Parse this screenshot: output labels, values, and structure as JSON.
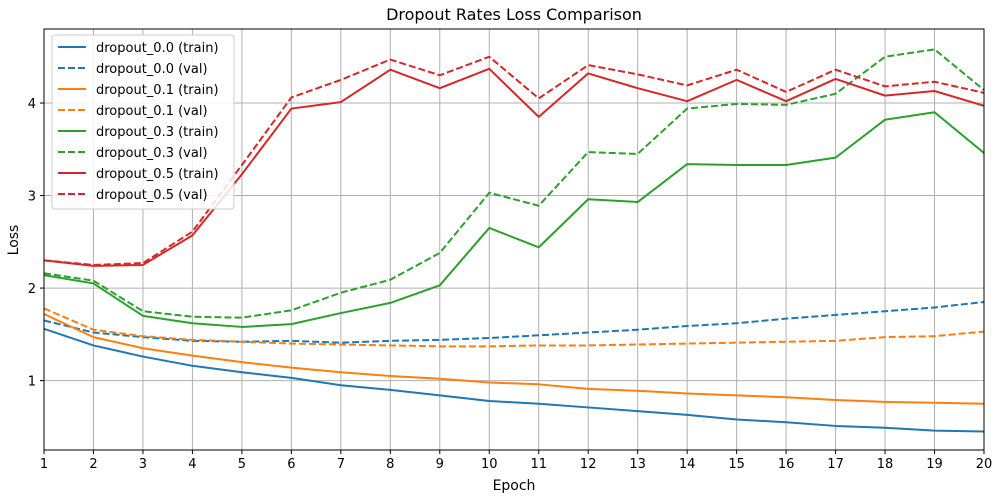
{
  "chart_data": {
    "type": "line",
    "title": "Dropout Rates Loss Comparison",
    "xlabel": "Epoch",
    "ylabel": "Loss",
    "x": [
      1,
      2,
      3,
      4,
      5,
      6,
      7,
      8,
      9,
      10,
      11,
      12,
      13,
      14,
      15,
      16,
      17,
      18,
      19,
      20
    ],
    "xlim": [
      1,
      20
    ],
    "ylim": [
      0.25,
      4.8
    ],
    "xticks": [
      1,
      2,
      3,
      4,
      5,
      6,
      7,
      8,
      9,
      10,
      11,
      12,
      13,
      14,
      15,
      16,
      17,
      18,
      19,
      20
    ],
    "yticks": [
      1,
      2,
      3,
      4
    ],
    "grid": true,
    "legend_position": "upper-left",
    "series": [
      {
        "name": "dropout_0.0 (train)",
        "color": "#1f77b4",
        "style": "solid",
        "values": [
          1.56,
          1.38,
          1.26,
          1.16,
          1.09,
          1.03,
          0.95,
          0.9,
          0.84,
          0.78,
          0.75,
          0.71,
          0.67,
          0.63,
          0.58,
          0.55,
          0.51,
          0.49,
          0.46,
          0.45
        ]
      },
      {
        "name": "dropout_0.0 (val)",
        "color": "#1f77b4",
        "style": "dashed",
        "values": [
          1.65,
          1.52,
          1.47,
          1.43,
          1.42,
          1.43,
          1.41,
          1.43,
          1.44,
          1.46,
          1.49,
          1.52,
          1.55,
          1.59,
          1.62,
          1.67,
          1.71,
          1.75,
          1.79,
          1.85
        ]
      },
      {
        "name": "dropout_0.1 (train)",
        "color": "#ff7f0e",
        "style": "solid",
        "values": [
          1.72,
          1.47,
          1.35,
          1.27,
          1.2,
          1.14,
          1.09,
          1.05,
          1.02,
          0.98,
          0.96,
          0.91,
          0.89,
          0.86,
          0.84,
          0.82,
          0.79,
          0.77,
          0.76,
          0.75
        ]
      },
      {
        "name": "dropout_0.1 (val)",
        "color": "#ff7f0e",
        "style": "dashed",
        "values": [
          1.78,
          1.55,
          1.48,
          1.44,
          1.42,
          1.4,
          1.39,
          1.38,
          1.37,
          1.37,
          1.38,
          1.38,
          1.39,
          1.4,
          1.41,
          1.42,
          1.43,
          1.47,
          1.48,
          1.53
        ]
      },
      {
        "name": "dropout_0.3 (train)",
        "color": "#2ca02c",
        "style": "solid",
        "values": [
          2.14,
          2.05,
          1.7,
          1.62,
          1.58,
          1.61,
          1.73,
          1.84,
          2.03,
          2.65,
          2.44,
          2.96,
          2.93,
          3.34,
          3.33,
          3.33,
          3.41,
          3.82,
          3.9,
          3.46
        ]
      },
      {
        "name": "dropout_0.3 (val)",
        "color": "#2ca02c",
        "style": "dashed",
        "values": [
          2.16,
          2.08,
          1.75,
          1.69,
          1.68,
          1.76,
          1.95,
          2.09,
          2.38,
          3.03,
          2.89,
          3.47,
          3.45,
          3.94,
          3.99,
          3.98,
          4.1,
          4.5,
          4.58,
          4.14
        ]
      },
      {
        "name": "dropout_0.5 (train)",
        "color": "#d62728",
        "style": "solid",
        "values": [
          2.3,
          2.24,
          2.25,
          2.57,
          3.23,
          3.94,
          4.01,
          4.36,
          4.16,
          4.37,
          3.85,
          4.32,
          4.16,
          4.02,
          4.25,
          4.02,
          4.26,
          4.08,
          4.13,
          3.97
        ]
      },
      {
        "name": "dropout_0.5 (val)",
        "color": "#d62728",
        "style": "dashed",
        "values": [
          2.3,
          2.25,
          2.27,
          2.61,
          3.33,
          4.06,
          4.25,
          4.47,
          4.3,
          4.5,
          4.05,
          4.41,
          4.31,
          4.19,
          4.36,
          4.12,
          4.36,
          4.18,
          4.23,
          4.11
        ]
      }
    ]
  }
}
